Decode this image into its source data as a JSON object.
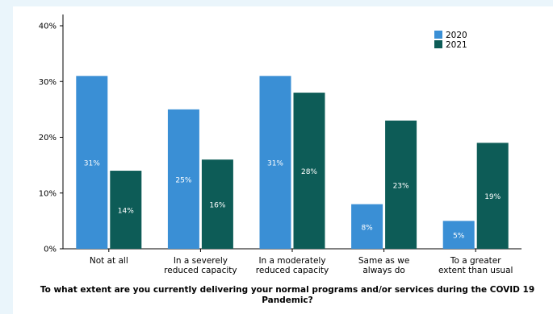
{
  "chart_data": {
    "type": "bar",
    "title": "To what extent are you currently delivering your normal programs and/or services during the COVID 19 Pandemic?",
    "categories": [
      [
        "Not at all"
      ],
      [
        "In a severely",
        "reduced capacity"
      ],
      [
        "In a moderately",
        "reduced capacity"
      ],
      [
        "Same as we",
        "always do"
      ],
      [
        "To a greater",
        "extent than usual"
      ]
    ],
    "series": [
      {
        "name": "2020",
        "color": "#3a8fd5",
        "values": [
          31,
          25,
          31,
          8,
          5
        ],
        "labels": [
          "31%",
          "25%",
          "31%",
          "8%",
          "5%"
        ]
      },
      {
        "name": "2021",
        "color": "#0d5c57",
        "values": [
          14,
          16,
          28,
          23,
          19
        ],
        "labels": [
          "14%",
          "16%",
          "28%",
          "23%",
          "19%"
        ]
      }
    ],
    "y_ticks": [
      "0%",
      "10%",
      "20%",
      "30%",
      "40%"
    ],
    "ylim": [
      0,
      40
    ],
    "grid": false,
    "legend_position": "top-right"
  }
}
